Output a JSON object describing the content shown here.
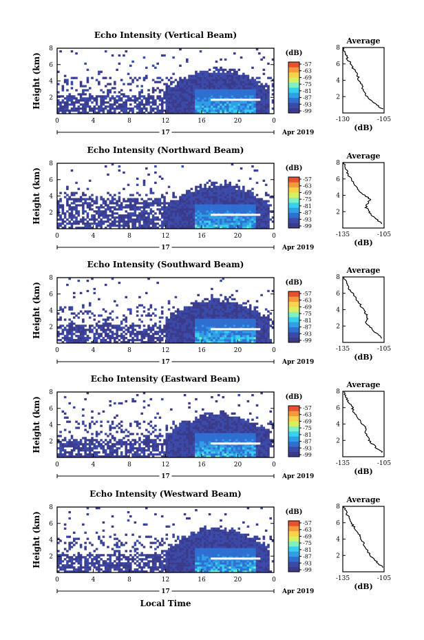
{
  "colorbar": {
    "unit": "(dB)",
    "ticks": [
      "-57",
      "-63",
      "-69",
      "-75",
      "-81",
      "-87",
      "-93",
      "-99"
    ],
    "colors": [
      "#3b3b8c",
      "#3b4aa8",
      "#2f6fd2",
      "#2f9fe6",
      "#38d0ef",
      "#7ff0c0",
      "#d8f060",
      "#f7d24a",
      "#f59a3c",
      "#e8502f"
    ],
    "range": [
      -102,
      -54
    ]
  },
  "panels": [
    {
      "id": "vertical",
      "title": "Echo Intensity (Vertical Beam)",
      "ylabel": "Height (km)",
      "yticks": [
        "2",
        "4",
        "6",
        "8"
      ],
      "xticks": [
        "0",
        "4",
        "8",
        "12",
        "16",
        "20",
        "0"
      ],
      "date_label": "17",
      "month_label": "Apr 2019",
      "profile": {
        "title": "Average",
        "xlabel": "(dB)",
        "xticks": [
          "-130",
          "-105"
        ],
        "yticks": [
          "2",
          "4",
          "6",
          "8"
        ]
      }
    },
    {
      "id": "northward",
      "title": "Echo Intensity (Northward Beam)",
      "ylabel": "Height (km)",
      "yticks": [
        "2",
        "4",
        "6",
        "8"
      ],
      "xticks": [
        "0",
        "4",
        "8",
        "12",
        "16",
        "20",
        "0"
      ],
      "date_label": "17",
      "month_label": "Apr 2019",
      "profile": {
        "title": "Average",
        "xlabel": "(dB)",
        "xticks": [
          "-135",
          "-105"
        ],
        "yticks": [
          "2",
          "4",
          "6",
          "8"
        ]
      }
    },
    {
      "id": "southward",
      "title": "Echo Intensity (Southward Beam)",
      "ylabel": "Height (km)",
      "yticks": [
        "2",
        "4",
        "6",
        "8"
      ],
      "xticks": [
        "0",
        "4",
        "8",
        "12",
        "16",
        "20",
        "0"
      ],
      "date_label": "17",
      "month_label": "Apr 2019",
      "profile": {
        "title": "Average",
        "xlabel": "(dB)",
        "xticks": [
          "-135",
          "-105"
        ],
        "yticks": [
          "2",
          "4",
          "6",
          "8"
        ]
      }
    },
    {
      "id": "eastward",
      "title": "Echo Intensity (Eastward Beam)",
      "ylabel": "Height (km)",
      "yticks": [
        "2",
        "4",
        "6",
        "8"
      ],
      "xticks": [
        "0",
        "4",
        "8",
        "12",
        "16",
        "20",
        "0"
      ],
      "date_label": "17",
      "month_label": "Apr 2019",
      "profile": {
        "title": "Average",
        "xlabel": "(dB)",
        "xticks": [
          "-135",
          "-105"
        ],
        "yticks": [
          "2",
          "4",
          "6",
          "8"
        ]
      }
    },
    {
      "id": "westward",
      "title": "Echo Intensity (Westward Beam)",
      "ylabel": "Height (km)",
      "yticks": [
        "2",
        "4",
        "6",
        "8"
      ],
      "xticks": [
        "0",
        "4",
        "8",
        "12",
        "16",
        "20",
        "0"
      ],
      "date_label": "17",
      "month_label": "Apr 2019",
      "profile": {
        "title": "Average",
        "xlabel": "(dB)",
        "xticks": [
          "-135",
          "-105"
        ],
        "yticks": [
          "2",
          "4",
          "6",
          "8"
        ]
      }
    }
  ],
  "xlabel": "Local Time",
  "chart_data": [
    {
      "type": "heatmap",
      "title": "Echo Intensity (Vertical Beam)",
      "xlabel": "",
      "ylabel": "Height (km)",
      "x_range_hours": [
        0,
        24
      ],
      "y_range_km": [
        0,
        8
      ],
      "colorbar_label": "(dB)",
      "colorbar_ticks": [
        -57,
        -63,
        -69,
        -75,
        -81,
        -87,
        -93,
        -99
      ],
      "note_bright_layer_km": 1.7,
      "profile": {
        "type": "line",
        "title": "Average",
        "xlabel": "(dB)",
        "xlim": [
          -130,
          -105
        ],
        "height_km": [
          0.5,
          1,
          1.5,
          2,
          2.5,
          3,
          3.5,
          4,
          4.5,
          5,
          5.5,
          6,
          6.5,
          7,
          7.5,
          8
        ],
        "value_db": [
          -106,
          -110,
          -113,
          -115,
          -117,
          -118,
          -119,
          -120,
          -121,
          -122,
          -124,
          -125,
          -127,
          -128,
          -129,
          -130
        ]
      }
    },
    {
      "type": "heatmap",
      "title": "Echo Intensity (Northward Beam)",
      "xlabel": "",
      "ylabel": "Height (km)",
      "x_range_hours": [
        0,
        24
      ],
      "y_range_km": [
        0,
        8
      ],
      "colorbar_label": "(dB)",
      "colorbar_ticks": [
        -57,
        -63,
        -69,
        -75,
        -81,
        -87,
        -93,
        -99
      ],
      "note_bright_layer_km": 1.7,
      "profile": {
        "type": "line",
        "title": "Average",
        "xlabel": "(dB)",
        "xlim": [
          -135,
          -105
        ],
        "height_km": [
          0.5,
          1,
          1.5,
          2,
          2.5,
          3,
          3.5,
          4,
          4.5,
          5,
          5.5,
          6,
          6.5,
          7,
          7.5,
          8
        ],
        "value_db": [
          -106,
          -110,
          -114,
          -116,
          -118,
          -117,
          -115,
          -119,
          -123,
          -125,
          -127,
          -129,
          -131,
          -132,
          -133,
          -134
        ]
      }
    },
    {
      "type": "heatmap",
      "title": "Echo Intensity (Southward Beam)",
      "xlabel": "",
      "ylabel": "Height (km)",
      "x_range_hours": [
        0,
        24
      ],
      "y_range_km": [
        0,
        8
      ],
      "colorbar_label": "(dB)",
      "colorbar_ticks": [
        -57,
        -63,
        -69,
        -75,
        -81,
        -87,
        -93,
        -99
      ],
      "note_bright_layer_km": 1.7,
      "profile": {
        "type": "line",
        "title": "Average",
        "xlabel": "(dB)",
        "xlim": [
          -135,
          -105
        ],
        "height_km": [
          0.5,
          1,
          1.5,
          2,
          2.5,
          3,
          3.5,
          4,
          4.5,
          5,
          5.5,
          6,
          6.5,
          7,
          7.5,
          8
        ],
        "value_db": [
          -106,
          -110,
          -113,
          -116,
          -118,
          -117,
          -118,
          -120,
          -122,
          -124,
          -126,
          -128,
          -130,
          -131,
          -133,
          -134
        ]
      }
    },
    {
      "type": "heatmap",
      "title": "Echo Intensity (Eastward Beam)",
      "xlabel": "",
      "ylabel": "Height (km)",
      "x_range_hours": [
        0,
        24
      ],
      "y_range_km": [
        0,
        8
      ],
      "colorbar_label": "(dB)",
      "colorbar_ticks": [
        -57,
        -63,
        -69,
        -75,
        -81,
        -87,
        -93,
        -99
      ],
      "note_bright_layer_km": 1.7,
      "profile": {
        "type": "line",
        "title": "Average",
        "xlabel": "(dB)",
        "xlim": [
          -135,
          -105
        ],
        "height_km": [
          0.5,
          1,
          1.5,
          2,
          2.5,
          3,
          3.5,
          4,
          4.5,
          5,
          5.5,
          6,
          6.5,
          7,
          7.5,
          8
        ],
        "value_db": [
          -106,
          -110,
          -113,
          -116,
          -117,
          -119,
          -118,
          -121,
          -123,
          -125,
          -127,
          -128,
          -130,
          -132,
          -133,
          -134
        ]
      }
    },
    {
      "type": "heatmap",
      "title": "Echo Intensity (Westward Beam)",
      "xlabel": "Local Time",
      "ylabel": "Height (km)",
      "x_range_hours": [
        0,
        24
      ],
      "y_range_km": [
        0,
        8
      ],
      "colorbar_label": "(dB)",
      "colorbar_ticks": [
        -57,
        -63,
        -69,
        -75,
        -81,
        -87,
        -93,
        -99
      ],
      "note_bright_layer_km": 1.7,
      "profile": {
        "type": "line",
        "title": "Average",
        "xlabel": "(dB)",
        "xlim": [
          -135,
          -105
        ],
        "height_km": [
          0.5,
          1,
          1.5,
          2,
          2.5,
          3,
          3.5,
          4,
          4.5,
          5,
          5.5,
          6,
          6.5,
          7,
          7.5,
          8
        ],
        "value_db": [
          -106,
          -109,
          -112,
          -115,
          -117,
          -119,
          -120,
          -122,
          -123,
          -125,
          -127,
          -129,
          -130,
          -132,
          -133,
          -134
        ]
      }
    }
  ]
}
